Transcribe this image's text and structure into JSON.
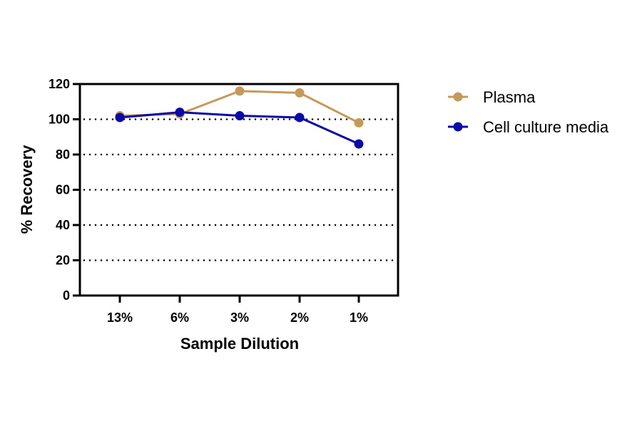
{
  "chart_data": {
    "type": "line",
    "title": "",
    "xlabel": "Sample Dilution",
    "ylabel": "% Recovery",
    "categories": [
      "13%",
      "6%",
      "3%",
      "2%",
      "1%"
    ],
    "ylim": [
      0,
      120
    ],
    "yticks": [
      0,
      20,
      40,
      60,
      80,
      100,
      120
    ],
    "grid": "horizontal dotted",
    "legend_position": "right",
    "series": [
      {
        "name": "Plasma",
        "color": "#C49A5A",
        "values": [
          102,
          103,
          116,
          115,
          98
        ]
      },
      {
        "name": "Cell culture media",
        "color": "#0A0AA8",
        "values": [
          101,
          104,
          102,
          101,
          86
        ]
      }
    ]
  }
}
